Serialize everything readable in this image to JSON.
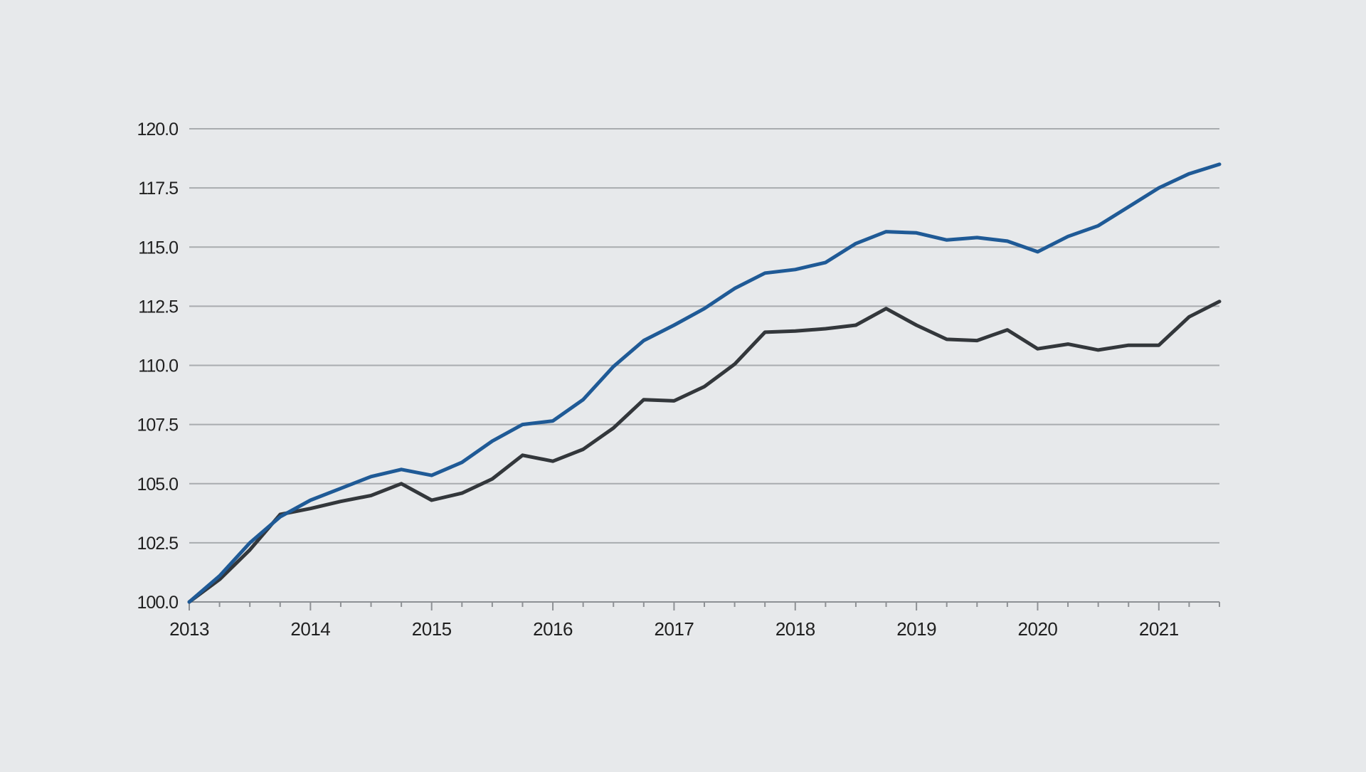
{
  "chart_data": {
    "type": "line",
    "title": "",
    "xlabel": "",
    "ylabel": "",
    "ylim": [
      100,
      120
    ],
    "y_ticks": [
      100,
      102.5,
      105,
      107.5,
      110,
      112.5,
      115,
      117.5,
      120
    ],
    "y_tick_labels": [
      "100.0",
      "102.5",
      "105.0",
      "107.5",
      "110.0",
      "112.5",
      "115.0",
      "117.5",
      "120.0"
    ],
    "xlim": [
      2013,
      2021.5
    ],
    "x_ticks": [
      2013,
      2014,
      2015,
      2016,
      2017,
      2018,
      2019,
      2020,
      2021
    ],
    "x_tick_labels": [
      "2013",
      "2014",
      "2015",
      "2016",
      "2017",
      "2018",
      "2019",
      "2020",
      "2021"
    ],
    "grid": true,
    "x": [
      2013.0,
      2013.25,
      2013.5,
      2013.75,
      2014.0,
      2014.25,
      2014.5,
      2014.75,
      2015.0,
      2015.25,
      2015.5,
      2015.75,
      2016.0,
      2016.25,
      2016.5,
      2016.75,
      2017.0,
      2017.25,
      2017.5,
      2017.75,
      2018.0,
      2018.25,
      2018.5,
      2018.75,
      2019.0,
      2019.25,
      2019.5,
      2019.75,
      2020.0,
      2020.25,
      2020.5,
      2020.75,
      2021.0,
      2021.25,
      2021.5
    ],
    "series": [
      {
        "name": "Blue series",
        "color": "#1f5a96",
        "values": [
          100.0,
          101.1,
          102.5,
          103.6,
          104.3,
          104.8,
          105.3,
          105.6,
          105.35,
          105.9,
          106.8,
          107.5,
          107.65,
          108.55,
          109.95,
          111.05,
          111.7,
          112.4,
          113.25,
          113.9,
          114.05,
          114.35,
          115.15,
          115.65,
          115.6,
          115.3,
          115.4,
          115.25,
          114.8,
          115.45,
          115.9,
          116.7,
          117.5,
          118.1,
          118.5
        ]
      },
      {
        "name": "Dark series",
        "color": "#33373b",
        "values": [
          100.0,
          100.95,
          102.2,
          103.7,
          103.95,
          104.25,
          104.5,
          105.0,
          104.3,
          104.6,
          105.2,
          106.2,
          105.95,
          106.45,
          107.35,
          108.55,
          108.5,
          109.1,
          110.05,
          111.4,
          111.45,
          111.55,
          111.7,
          112.4,
          111.7,
          111.1,
          111.05,
          111.5,
          110.7,
          110.9,
          110.65,
          110.85,
          110.85,
          112.05,
          112.7
        ]
      }
    ]
  }
}
